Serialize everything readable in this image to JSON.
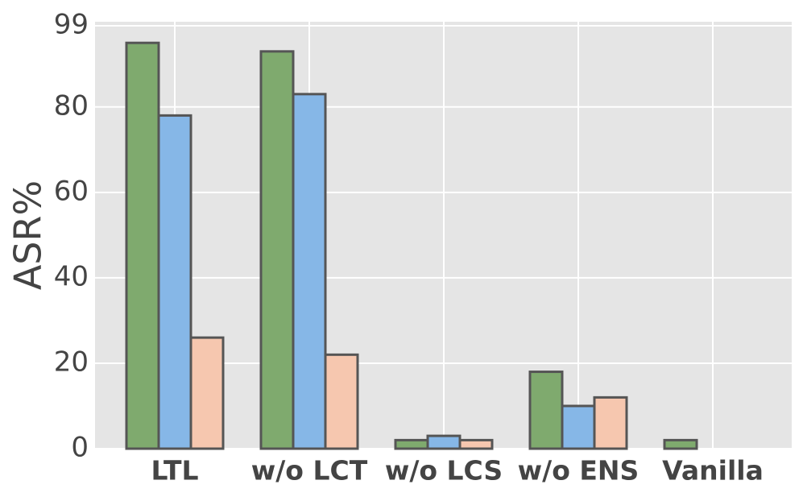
{
  "chart_data": {
    "type": "bar",
    "y_label": "ASR%",
    "categories": [
      "LTL",
      "w/o LCT",
      "w/o LCS",
      "w/o ENS",
      "Vanilla"
    ],
    "series": [
      {
        "color": "#7faa6e",
        "values": [
          95,
          93,
          2,
          18,
          2
        ]
      },
      {
        "color": "#86b7e7",
        "values": [
          78,
          83,
          3,
          10,
          0
        ]
      },
      {
        "color": "#f6c7af",
        "values": [
          26,
          22,
          2,
          12,
          0
        ]
      }
    ],
    "ylim": [
      0,
      99
    ],
    "yticks": [
      0,
      20,
      40,
      60,
      80,
      99
    ],
    "grid": true
  }
}
